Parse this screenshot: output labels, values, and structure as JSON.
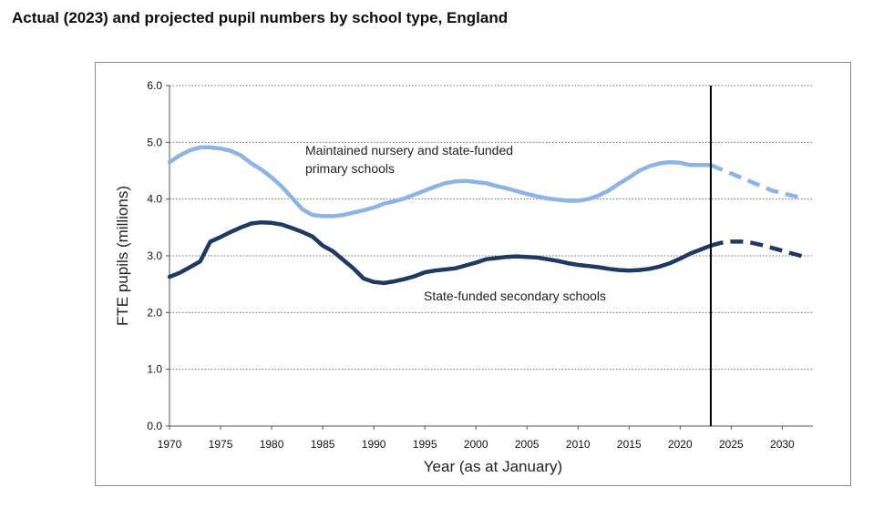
{
  "page": {
    "title": "Actual (2023) and projected pupil numbers by school type, England"
  },
  "chart_data": {
    "type": "line",
    "title": "Actual (2023) and projected pupil numbers by school type, England",
    "xlabel": "Year (as at January)",
    "ylabel": "FTE pupils (millions)",
    "xlim": [
      1970,
      2033
    ],
    "ylim": [
      0,
      6
    ],
    "x_ticks": [
      1970,
      1975,
      1980,
      1985,
      1990,
      1995,
      2000,
      2005,
      2010,
      2015,
      2020,
      2025,
      2030
    ],
    "y_ticks": [
      "0.0",
      "1.0",
      "2.0",
      "3.0",
      "4.0",
      "5.0",
      "6.0"
    ],
    "grid": "horizontal-dotted",
    "actual_projected_divider": 2023,
    "series": [
      {
        "name": "Maintained nursery and state-funded primary schools",
        "label_lines": [
          "Maintained nursery and state-funded",
          "primary schools"
        ],
        "color": "#8db4e2",
        "actual": [
          [
            1970,
            4.65
          ],
          [
            1971,
            4.77
          ],
          [
            1972,
            4.86
          ],
          [
            1973,
            4.91
          ],
          [
            1974,
            4.91
          ],
          [
            1975,
            4.89
          ],
          [
            1976,
            4.85
          ],
          [
            1977,
            4.77
          ],
          [
            1978,
            4.63
          ],
          [
            1979,
            4.52
          ],
          [
            1980,
            4.38
          ],
          [
            1981,
            4.22
          ],
          [
            1982,
            4.02
          ],
          [
            1983,
            3.82
          ],
          [
            1984,
            3.72
          ],
          [
            1985,
            3.7
          ],
          [
            1986,
            3.7
          ],
          [
            1987,
            3.72
          ],
          [
            1988,
            3.76
          ],
          [
            1989,
            3.8
          ],
          [
            1990,
            3.85
          ],
          [
            1991,
            3.92
          ],
          [
            1992,
            3.96
          ],
          [
            1993,
            4.01
          ],
          [
            1994,
            4.08
          ],
          [
            1995,
            4.15
          ],
          [
            1996,
            4.22
          ],
          [
            1997,
            4.28
          ],
          [
            1998,
            4.31
          ],
          [
            1999,
            4.32
          ],
          [
            2000,
            4.3
          ],
          [
            2001,
            4.28
          ],
          [
            2002,
            4.23
          ],
          [
            2003,
            4.19
          ],
          [
            2004,
            4.14
          ],
          [
            2005,
            4.09
          ],
          [
            2006,
            4.05
          ],
          [
            2007,
            4.01
          ],
          [
            2008,
            3.99
          ],
          [
            2009,
            3.97
          ],
          [
            2010,
            3.97
          ],
          [
            2011,
            4.0
          ],
          [
            2012,
            4.06
          ],
          [
            2013,
            4.15
          ],
          [
            2014,
            4.27
          ],
          [
            2015,
            4.38
          ],
          [
            2016,
            4.5
          ],
          [
            2017,
            4.58
          ],
          [
            2018,
            4.63
          ],
          [
            2019,
            4.65
          ],
          [
            2020,
            4.64
          ],
          [
            2021,
            4.6
          ],
          [
            2022,
            4.6
          ],
          [
            2023,
            4.6
          ]
        ],
        "projected": [
          [
            2023,
            4.6
          ],
          [
            2025,
            4.45
          ],
          [
            2027,
            4.3
          ],
          [
            2029,
            4.15
          ],
          [
            2031,
            4.06
          ],
          [
            2032,
            4.02
          ]
        ]
      },
      {
        "name": "State-funded secondary schools",
        "label_lines": [
          "State-funded secondary schools"
        ],
        "color": "#1f3864",
        "actual": [
          [
            1970,
            2.63
          ],
          [
            1971,
            2.7
          ],
          [
            1972,
            2.8
          ],
          [
            1973,
            2.9
          ],
          [
            1974,
            3.25
          ],
          [
            1975,
            3.33
          ],
          [
            1976,
            3.42
          ],
          [
            1977,
            3.5
          ],
          [
            1978,
            3.57
          ],
          [
            1979,
            3.59
          ],
          [
            1980,
            3.58
          ],
          [
            1981,
            3.55
          ],
          [
            1982,
            3.49
          ],
          [
            1983,
            3.42
          ],
          [
            1984,
            3.34
          ],
          [
            1985,
            3.18
          ],
          [
            1986,
            3.08
          ],
          [
            1987,
            2.93
          ],
          [
            1988,
            2.78
          ],
          [
            1989,
            2.6
          ],
          [
            1990,
            2.54
          ],
          [
            1991,
            2.52
          ],
          [
            1992,
            2.55
          ],
          [
            1993,
            2.59
          ],
          [
            1994,
            2.64
          ],
          [
            1995,
            2.71
          ],
          [
            1996,
            2.74
          ],
          [
            1997,
            2.76
          ],
          [
            1998,
            2.78
          ],
          [
            1999,
            2.83
          ],
          [
            2000,
            2.88
          ],
          [
            2001,
            2.94
          ],
          [
            2002,
            2.96
          ],
          [
            2003,
            2.98
          ],
          [
            2004,
            2.99
          ],
          [
            2005,
            2.98
          ],
          [
            2006,
            2.97
          ],
          [
            2007,
            2.94
          ],
          [
            2008,
            2.91
          ],
          [
            2009,
            2.87
          ],
          [
            2010,
            2.84
          ],
          [
            2011,
            2.82
          ],
          [
            2012,
            2.8
          ],
          [
            2013,
            2.77
          ],
          [
            2014,
            2.75
          ],
          [
            2015,
            2.74
          ],
          [
            2016,
            2.75
          ],
          [
            2017,
            2.77
          ],
          [
            2018,
            2.81
          ],
          [
            2019,
            2.87
          ],
          [
            2020,
            2.95
          ],
          [
            2021,
            3.04
          ],
          [
            2022,
            3.11
          ],
          [
            2023,
            3.18
          ]
        ],
        "projected": [
          [
            2023,
            3.18
          ],
          [
            2024,
            3.23
          ],
          [
            2025,
            3.25
          ],
          [
            2026,
            3.25
          ],
          [
            2027,
            3.23
          ],
          [
            2028,
            3.19
          ],
          [
            2029,
            3.14
          ],
          [
            2030,
            3.09
          ],
          [
            2031,
            3.04
          ],
          [
            2032,
            2.99
          ]
        ]
      }
    ]
  }
}
